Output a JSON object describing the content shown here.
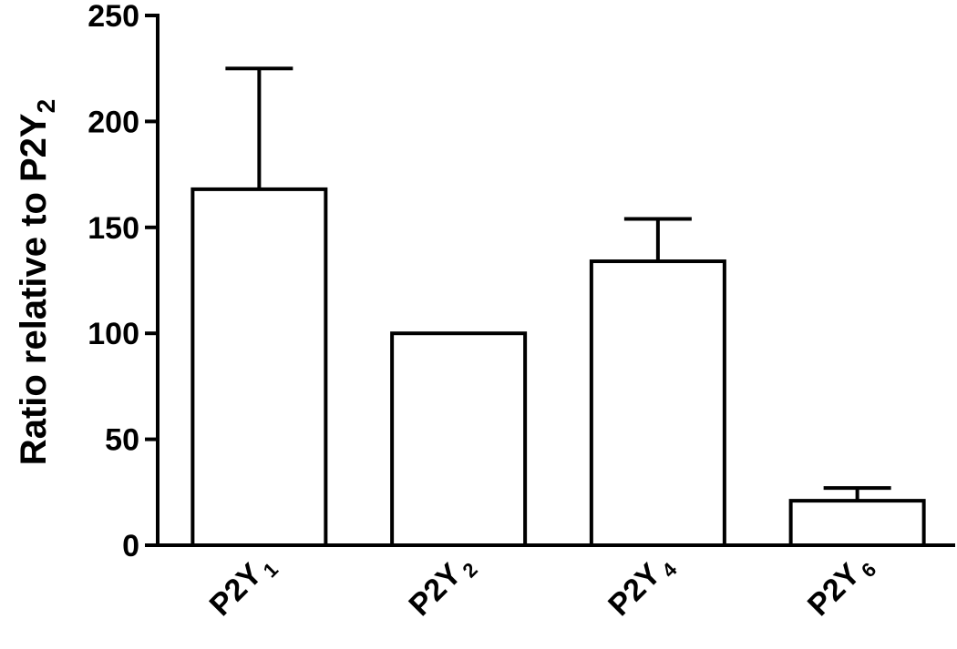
{
  "chart_data": {
    "type": "bar",
    "categories": [
      {
        "base": "P2Y",
        "sub": "1"
      },
      {
        "base": "P2Y",
        "sub": "2"
      },
      {
        "base": "P2Y",
        "sub": "4"
      },
      {
        "base": "P2Y",
        "sub": "6"
      }
    ],
    "values": [
      168,
      100,
      134,
      21
    ],
    "error_upper": [
      225,
      100,
      154,
      27
    ],
    "ylabel": {
      "text": "Ratio relative to P2Y",
      "sub": "2"
    },
    "xlabel": "",
    "ylim": [
      0,
      250
    ],
    "yticks": [
      0,
      50,
      100,
      150,
      200,
      250
    ],
    "grid": false,
    "colors": {
      "bar_fill": "#ffffff",
      "stroke": "#000000"
    }
  }
}
